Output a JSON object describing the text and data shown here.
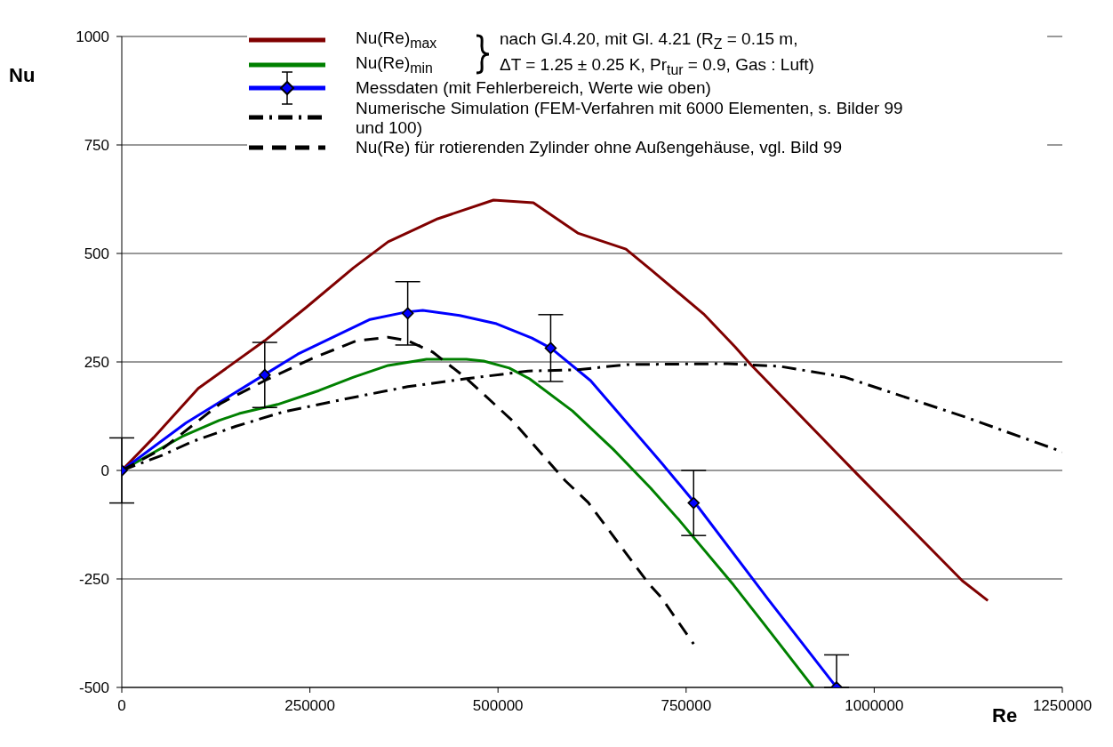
{
  "chart_data": {
    "type": "line",
    "xlabel": "Re",
    "ylabel": "Nu",
    "xlim": [
      0,
      1250000
    ],
    "xticks": [
      0,
      250000,
      500000,
      750000,
      1000000,
      1250000
    ],
    "ylim": [
      -500,
      1000
    ],
    "yticks": [
      -500,
      -250,
      0,
      250,
      500,
      750,
      1000
    ],
    "grid": "y",
    "legend": "top",
    "annotations": [
      "nach Gl.4.20, mit Gl. 4.21 (R$_{Z}$ = 0.15 m,",
      "ΔT = 1.25 ± 0.25 K, Pr$_{tur}$ = 0.9, Gas : Luft)"
    ],
    "series": [
      {
        "name": "Nu(Re)$_{max}$",
        "color": "#800000",
        "x": [
          0,
          42500,
          101600,
          190000,
          244600,
          308000,
          354000,
          420000,
          494000,
          547000,
          606000,
          670000,
          703000,
          773000,
          815000,
          836000,
          977000,
          1117000,
          1151000
        ],
        "values": [
          0,
          76,
          189,
          299,
          375,
          467,
          527,
          580,
          623,
          617,
          547,
          510,
          463,
          361,
          285,
          244,
          -8,
          -254,
          -300
        ]
      },
      {
        "name": "Nu(Re)$_{min}$",
        "color": "#008000",
        "x": [
          0,
          80000,
          129000,
          156000,
          207000,
          262000,
          308000,
          354000,
          405000,
          458000,
          481000,
          515000,
          542000,
          599000,
          653000,
          703000,
          741000,
          813000,
          851000,
          919000
        ],
        "values": [
          0,
          78,
          115,
          131,
          152,
          184,
          215,
          242,
          256,
          256,
          252,
          236,
          211,
          137,
          49,
          -41,
          -115,
          -264,
          -348,
          -500
        ]
      },
      {
        "color": "#0000ff",
        "x": [
          0,
          85000,
          188000,
          234000,
          330000,
          378000,
          400000,
          449000,
          498000,
          545000,
          571000,
          623000,
          718000,
          766000,
          859000,
          950000
        ],
        "values": [
          0,
          109,
          219,
          268,
          348,
          365,
          369,
          357,
          338,
          305,
          281,
          207,
          16,
          -84,
          -297,
          -500
        ]
      },
      {
        "type": "scatter",
        "name": "Messdaten (mit Fehlerbereich, Werte wie oben)",
        "color": "#0000ff",
        "marker": "diamond",
        "x": [
          0,
          190000,
          380000,
          570000,
          760000,
          950000
        ],
        "values": [
          0,
          220,
          362,
          282,
          -75,
          -500
        ],
        "errors": [
          75,
          75,
          73,
          77,
          75,
          [
            -500,
            -425
          ]
        ]
      },
      {
        "name": "Numerische Simulation (FEM-Verfahren mit 6000 Elementen, s. Bilder 99 und 100)",
        "color": "#000000",
        "line_style": "dashdot",
        "x": [
          0,
          54000,
          93000,
          152000,
          215000,
          295000,
          380000,
          456000,
          540000,
          606000,
          671000,
          805000,
          874000,
          961000,
          1121000,
          1250000
        ],
        "values": [
          0,
          35,
          66,
          102,
          135,
          164,
          193,
          211,
          229,
          232,
          244,
          246,
          240,
          215,
          123,
          43
        ]
      },
      {
        "name": "Nu(Re) für rotierenden Zylinder ohne Außengehäuse, vgl. Bild 99",
        "color": "#000000",
        "line_style": "dashed",
        "x": [
          0,
          55000,
          131000,
          190000,
          253000,
          312000,
          354000,
          380000,
          413000,
          456000,
          519000,
          589000,
          620000,
          699000,
          718000,
          760000
        ],
        "values": [
          0,
          51,
          154,
          207,
          258,
          299,
          307,
          299,
          273,
          215,
          115,
          -23,
          -74,
          -258,
          -295,
          -400
        ]
      }
    ]
  }
}
